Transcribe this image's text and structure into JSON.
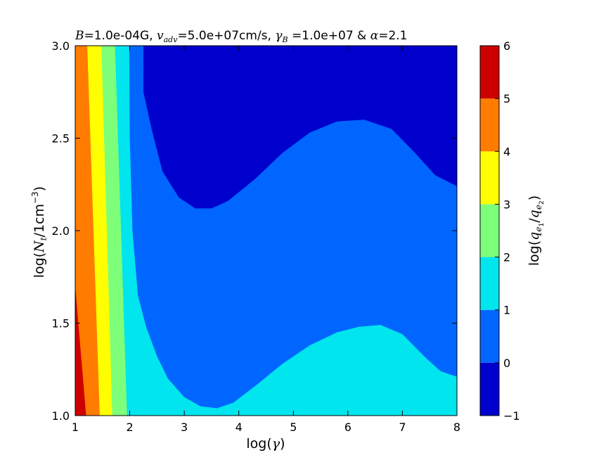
{
  "chart_data": {
    "type": "filled-contour",
    "title": {
      "b_sym": "B",
      "b_val": "=1.0e-04G, ",
      "v_sym": "v",
      "v_sub": "adv",
      "v_val": "=5.0e+07cm/s, ",
      "g_sym": "γ",
      "g_sub": "B",
      "g_val": " =1.0e+07 & ",
      "a_sym": "α",
      "a_val": "=2.1"
    },
    "xlabel": {
      "pre": "log(",
      "sym": "γ",
      "post": ")"
    },
    "ylabel": {
      "pre": "log(",
      "sym": "N",
      "sub": "t",
      "mid": "/1cm",
      "sup": "−3",
      "post": ")"
    },
    "colorbar_label": {
      "pre": "log(",
      "sym1": "q",
      "sub1": "e",
      "subsub1": "1",
      "slash": "/",
      "sym2": "q",
      "sub2": "e",
      "subsub2": "2",
      "post": ")"
    },
    "xlim": [
      1,
      8
    ],
    "ylim": [
      1.0,
      3.0
    ],
    "x_ticks": [
      1,
      2,
      3,
      4,
      5,
      6,
      7,
      8
    ],
    "x_tick_labels": [
      "1",
      "2",
      "3",
      "4",
      "5",
      "6",
      "7",
      "8"
    ],
    "y_ticks": [
      1.0,
      1.5,
      2.0,
      2.5,
      3.0
    ],
    "y_tick_labels": [
      "1.0",
      "1.5",
      "2.0",
      "2.5",
      "3.0"
    ],
    "levels": [
      -1,
      0,
      1,
      2,
      3,
      4,
      5,
      6
    ],
    "colorbar_tick_labels": [
      "−1",
      "0",
      "1",
      "2",
      "3",
      "4",
      "5",
      "6"
    ],
    "level_colors": [
      "#0000cd",
      "#0066ff",
      "#00e5ee",
      "#7dff7a",
      "#ffff00",
      "#ff7c00",
      "#cd0000"
    ],
    "contours": [
      {
        "level": 0,
        "points": [
          [
            2.25,
            3.0
          ],
          [
            2.25,
            2.75
          ],
          [
            2.4,
            2.55
          ],
          [
            2.6,
            2.32
          ],
          [
            2.9,
            2.18
          ],
          [
            3.2,
            2.12
          ],
          [
            3.5,
            2.12
          ],
          [
            3.8,
            2.16
          ],
          [
            4.3,
            2.28
          ],
          [
            4.8,
            2.42
          ],
          [
            5.3,
            2.53
          ],
          [
            5.8,
            2.59
          ],
          [
            6.3,
            2.6
          ],
          [
            6.8,
            2.55
          ],
          [
            7.2,
            2.43
          ],
          [
            7.6,
            2.3
          ],
          [
            8.0,
            2.24
          ]
        ]
      },
      {
        "level": 1,
        "points": [
          [
            1.99,
            3.0
          ],
          [
            2.0,
            2.5
          ],
          [
            2.05,
            2.0
          ],
          [
            2.15,
            1.65
          ],
          [
            2.3,
            1.48
          ],
          [
            2.5,
            1.32
          ],
          [
            2.7,
            1.2
          ],
          [
            3.0,
            1.1
          ],
          [
            3.3,
            1.05
          ],
          [
            3.6,
            1.04
          ],
          [
            3.9,
            1.07
          ],
          [
            4.3,
            1.16
          ],
          [
            4.8,
            1.28
          ],
          [
            5.3,
            1.38
          ],
          [
            5.8,
            1.45
          ],
          [
            6.2,
            1.48
          ],
          [
            6.6,
            1.49
          ],
          [
            7.0,
            1.44
          ],
          [
            7.4,
            1.32
          ],
          [
            7.7,
            1.24
          ],
          [
            8.0,
            1.21
          ]
        ]
      },
      {
        "level": 2,
        "points": [
          [
            1.73,
            3.0
          ],
          [
            1.95,
            1.0
          ]
        ]
      },
      {
        "level": 3,
        "points": [
          [
            1.48,
            3.0
          ],
          [
            1.68,
            1.0
          ]
        ]
      },
      {
        "level": 4,
        "points": [
          [
            1.22,
            3.0
          ],
          [
            1.45,
            1.0
          ]
        ]
      },
      {
        "level": 5,
        "points": [
          [
            1.0,
            2.55
          ],
          [
            1.0,
            1.7
          ],
          [
            1.2,
            1.0
          ]
        ]
      }
    ]
  }
}
